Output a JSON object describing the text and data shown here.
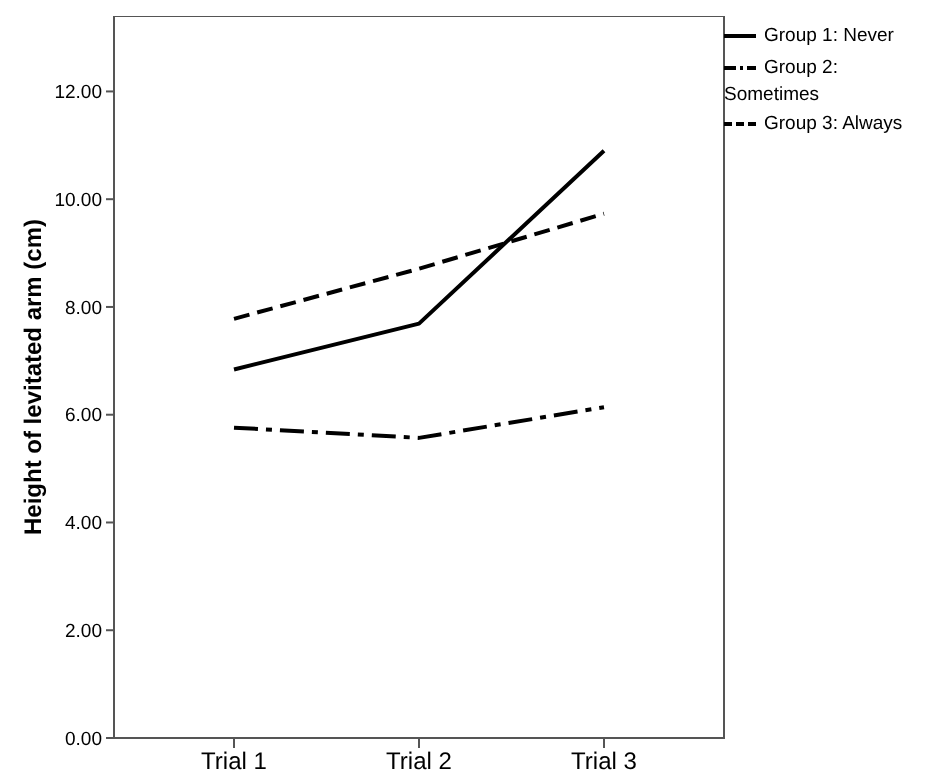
{
  "chart_data": {
    "type": "line",
    "ylabel": "Height of levitated arm (cm)",
    "categories": [
      "Trial 1",
      "Trial 2",
      "Trial 3"
    ],
    "series": [
      {
        "name": "Group 1: Never",
        "color": "#000000",
        "line_style": "solid",
        "values": [
          6.84,
          7.69,
          10.9
        ]
      },
      {
        "name": "Group 2: Sometimes",
        "color": "#000000",
        "line_style": "dashdot",
        "values": [
          5.76,
          5.57,
          6.14
        ]
      },
      {
        "name": "Group 3: Always",
        "color": "#000000",
        "line_style": "dashed",
        "values": [
          7.78,
          8.71,
          9.73
        ]
      }
    ],
    "ylim": [
      0,
      13.4
    ],
    "yticks": [
      {
        "value": 0,
        "label": "0.00"
      },
      {
        "value": 2,
        "label": "2.00"
      },
      {
        "value": 4,
        "label": "4.00"
      },
      {
        "value": 6,
        "label": "6.00"
      },
      {
        "value": 8,
        "label": "8.00"
      },
      {
        "value": 10,
        "label": "10.00"
      },
      {
        "value": 12,
        "label": "12.00"
      }
    ],
    "grid": false,
    "legend": "top right",
    "marker": "none"
  }
}
